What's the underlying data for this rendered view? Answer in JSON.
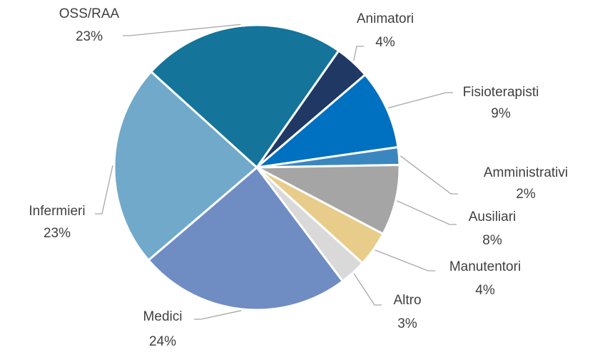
{
  "chart_data": {
    "type": "pie",
    "categories": [
      "Animatori",
      "Fisioterapisti",
      "Amministrativi",
      "Ausiliari",
      "Manutentori",
      "Altro",
      "Medici",
      "Infermieri",
      "OSS/RAA"
    ],
    "values": [
      4,
      9,
      2,
      8,
      4,
      3,
      24,
      23,
      23
    ],
    "value_labels": [
      "4%",
      "9%",
      "2%",
      "8%",
      "4%",
      "3%",
      "24%",
      "23%",
      "23%"
    ],
    "colors": [
      "#1f3864",
      "#0070c0",
      "#3a87c0",
      "#a5a5a5",
      "#e8cc8a",
      "#d9d9d9",
      "#6f8cc3",
      "#70a9c9",
      "#14749a"
    ]
  }
}
